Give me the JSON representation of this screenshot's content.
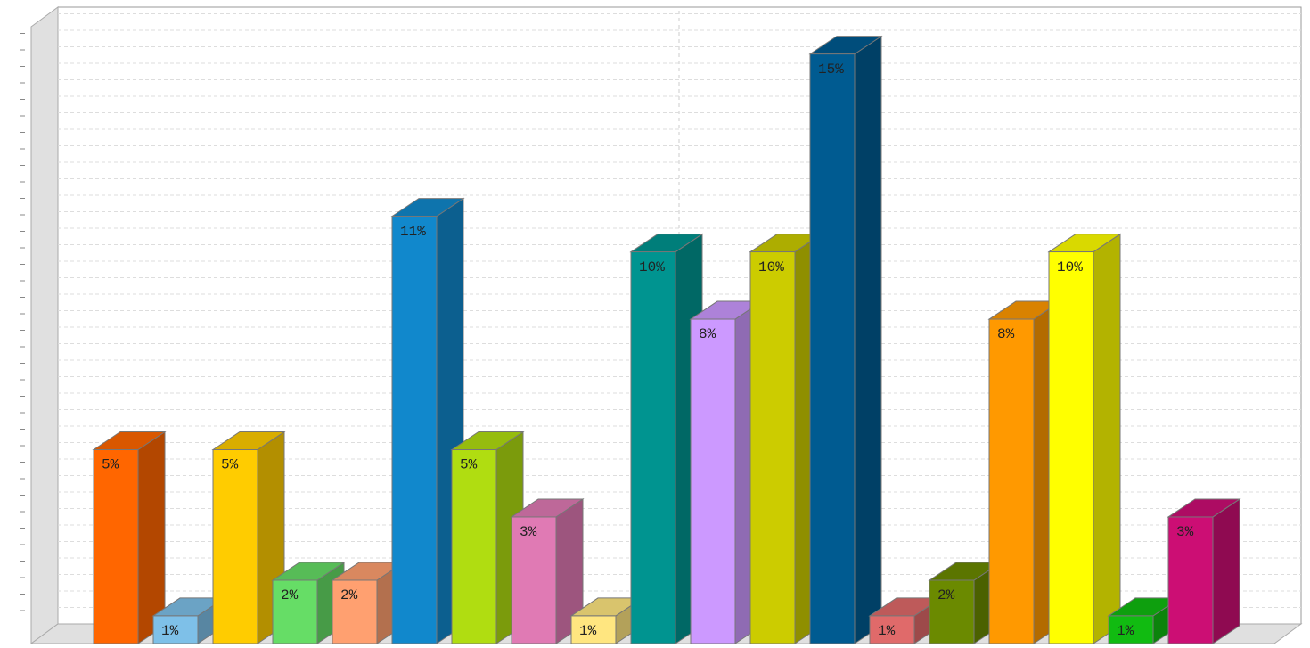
{
  "chart_data": {
    "type": "bar3d",
    "categories": [
      null,
      null,
      null,
      null,
      null,
      null,
      null,
      null,
      null,
      null,
      null,
      null,
      null,
      null,
      null,
      null,
      null,
      null,
      null
    ],
    "values": [
      4.9,
      0.7,
      4.9,
      1.6,
      1.6,
      10.8,
      4.9,
      3.2,
      0.7,
      9.9,
      8.2,
      9.9,
      14.9,
      0.7,
      1.6,
      8.2,
      9.9,
      0.7,
      3.2
    ],
    "value_labels": [
      "5%",
      "1%",
      "5%",
      "2%",
      "2%",
      "11%",
      "5%",
      "3%",
      "1%",
      "10%",
      "8%",
      "10%",
      "15%",
      "1%",
      "2%",
      "8%",
      "10%",
      "1%",
      "3%"
    ],
    "colors": [
      "#ff6600",
      "#7ec0e8",
      "#ffcc00",
      "#66dd66",
      "#ffa070",
      "#1188cc",
      "#b0dd11",
      "#e07ab4",
      "#ffe680",
      "#009490",
      "#cc99ff",
      "#cccc00",
      "#005b91",
      "#e06a6a",
      "#6b8a00",
      "#ff9900",
      "#ffff00",
      "#11bb11",
      "#cc0e74"
    ],
    "ylim": [
      0,
      15.5
    ],
    "grid": true
  }
}
